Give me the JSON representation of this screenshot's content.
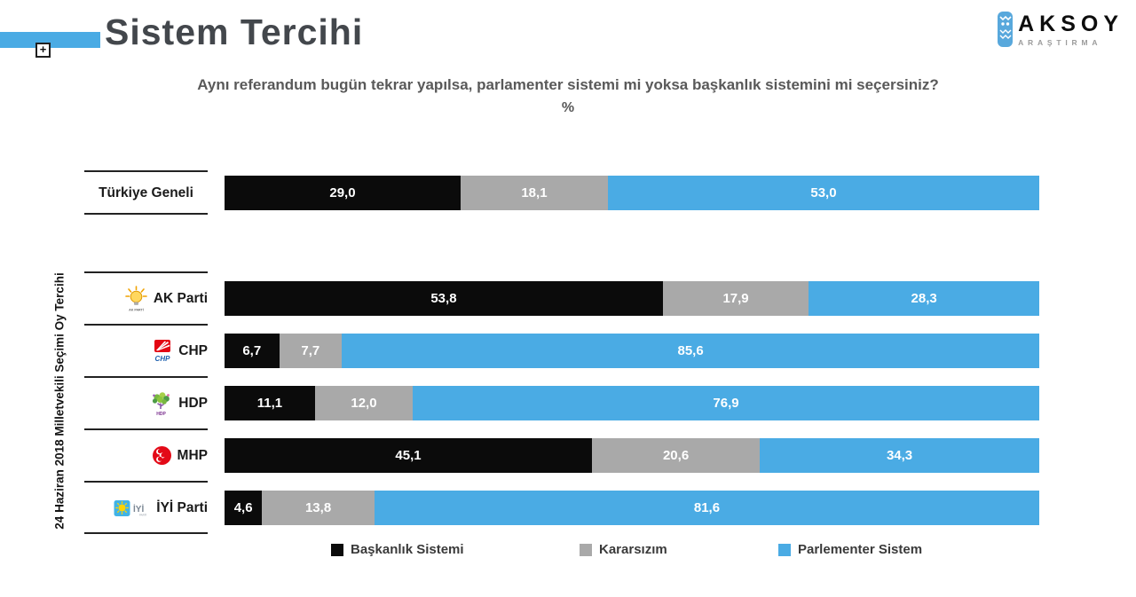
{
  "header": {
    "title": "Sistem Tercihi",
    "plus_glyph": "+",
    "brand": {
      "name": "AKSOY",
      "sub": "ARAŞTIRMA",
      "owl_icon": "owl-logo-icon"
    }
  },
  "question": "Aynı referandum bugün tekrar yapılsa, parlamenter sistemi mi yoksa başkanlık sistemini mi seçersiniz?",
  "unit": "%",
  "y_axis_label": "24 Haziran 2018 Milletvekili Seçimi Oy Tercihi",
  "colors": {
    "accent_bar": "#4aabe4",
    "baskanlik_sistemi": "#0b0b0b",
    "kararsizim": "#a9a9a9",
    "parlementer_sistem": "#4aabe4",
    "separator_line": "#222222"
  },
  "chart_data": {
    "type": "bar",
    "orientation": "horizontal",
    "stacked": true,
    "unit": "%",
    "xlim": [
      0,
      100
    ],
    "grid": false,
    "legend_position": "bottom",
    "categories": [
      "Türkiye Geneli",
      "AK Parti",
      "CHP",
      "HDP",
      "MHP",
      "İYİ Parti"
    ],
    "series": [
      {
        "name": "Başkanlık Sistemi",
        "color": "#0b0b0b",
        "values": [
          29.0,
          53.8,
          6.7,
          11.1,
          45.1,
          4.6
        ]
      },
      {
        "name": "Kararsızım",
        "color": "#a9a9a9",
        "values": [
          18.1,
          17.9,
          7.7,
          12.0,
          20.6,
          13.8
        ]
      },
      {
        "name": "Parlementer Sistem",
        "color": "#4aabe4",
        "values": [
          53.0,
          28.3,
          85.6,
          76.9,
          34.3,
          81.6
        ]
      }
    ],
    "value_labels": [
      [
        "29,0",
        "18,1",
        "53,0"
      ],
      [
        "53,8",
        "17,9",
        "28,3"
      ],
      [
        "6,7",
        "7,7",
        "85,6"
      ],
      [
        "11,1",
        "12,0",
        "76,9"
      ],
      [
        "45,1",
        "20,6",
        "34,3"
      ],
      [
        "4,6",
        "13,8",
        "81,6"
      ]
    ],
    "row_icons": [
      null,
      "akparti-logo-icon",
      "chp-logo-icon",
      "hdp-logo-icon",
      "mhp-logo-icon",
      "iyi-logo-icon"
    ]
  }
}
